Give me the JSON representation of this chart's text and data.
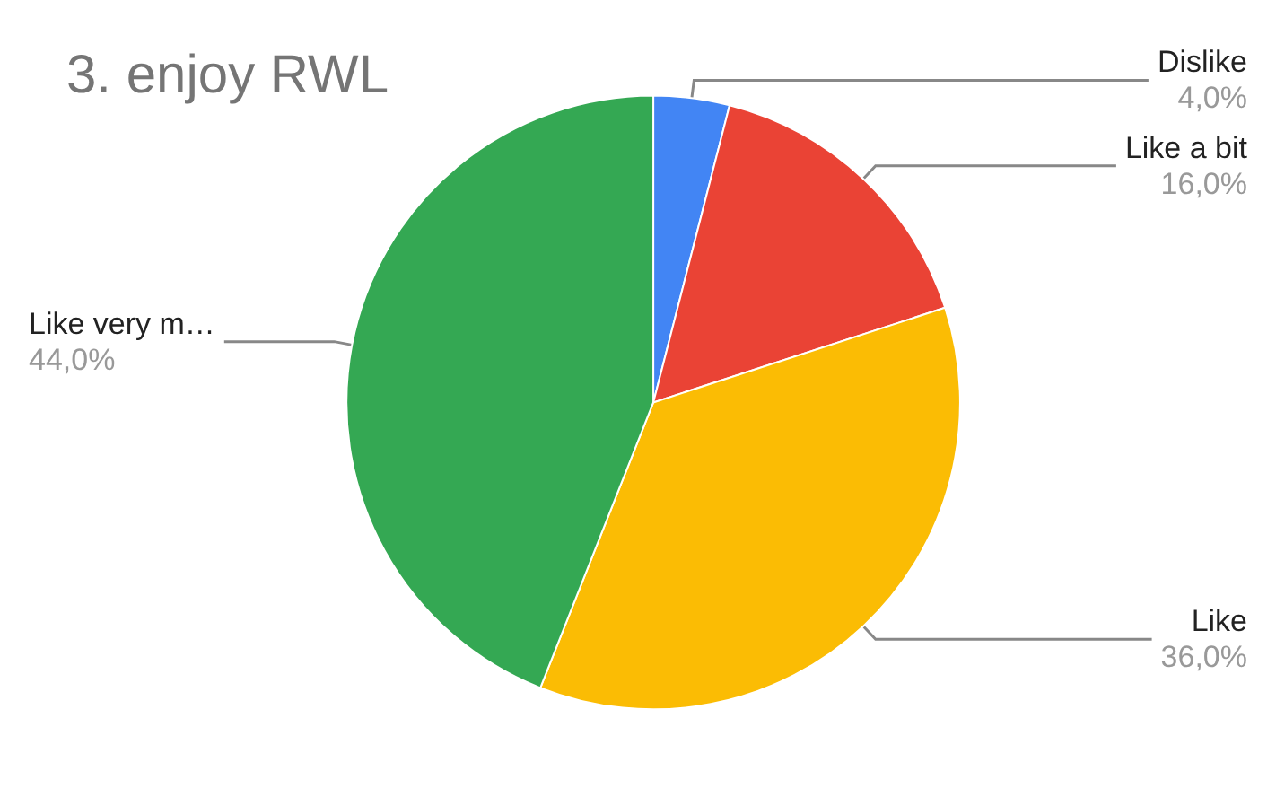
{
  "chart_data": {
    "type": "pie",
    "title": "3. enjoy RWL",
    "categories": [
      "Dislike",
      "Like a bit",
      "Like",
      "Like very m…"
    ],
    "values": [
      4,
      16,
      36,
      44
    ],
    "colors": [
      "#4285f4",
      "#ea4335",
      "#fbbc04",
      "#34a853"
    ],
    "value_labels": [
      "4,0%",
      "16,0%",
      "36,0%",
      "44,0%"
    ],
    "legend": false
  }
}
